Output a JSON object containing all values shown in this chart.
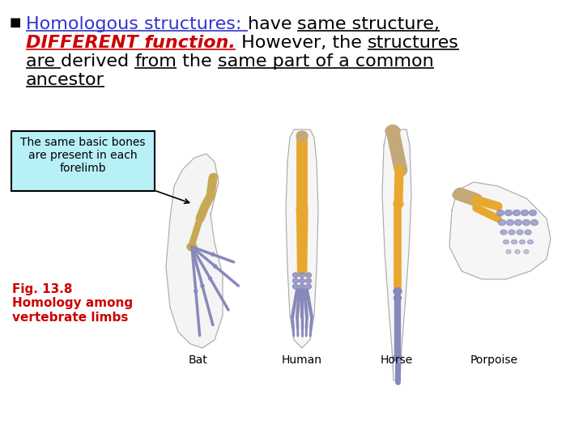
{
  "background_color": "#ffffff",
  "bullet_color": "#000000",
  "callout_text": "The same basic bones\nare present in each\nforelimb",
  "callout_bg": "#b8f0f8",
  "callout_border": "#000000",
  "fig_label": "Fig. 13.8\nHomology among\nvertebrate limbs",
  "fig_label_color": "#cc0000",
  "labels": [
    "Bat",
    "Human",
    "Horse",
    "Porpoise"
  ],
  "bone_tan": "#c8a855",
  "bone_orange": "#e8a830",
  "bone_beige": "#c4a878",
  "bone_purple": "#8888bb",
  "bone_dark_purple": "#7070aa",
  "outline_color": "#cccccc",
  "font_size_main": 16,
  "font_size_callout": 10,
  "font_size_fig": 10,
  "font_size_sublabel": 9
}
